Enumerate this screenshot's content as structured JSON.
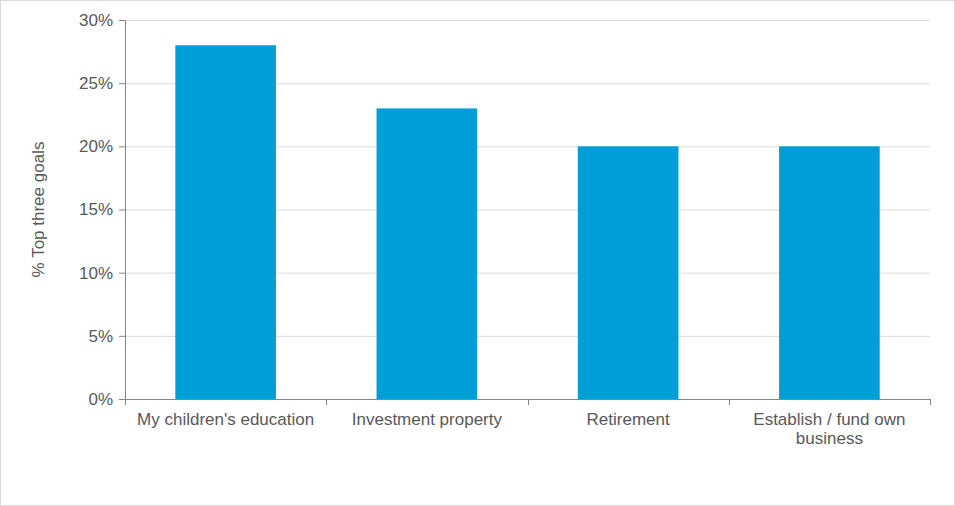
{
  "chart_data": {
    "type": "bar",
    "y_label": "% Top three goals",
    "categories": [
      "My children's education",
      "Investment property",
      "Retirement",
      "Establish / fund own business"
    ],
    "values": [
      28,
      23,
      20,
      20
    ],
    "color": "#009ED8",
    "ylim": [
      0,
      30
    ],
    "yticks": [
      {
        "value": 0,
        "label": "0%"
      },
      {
        "value": 5,
        "label": "5%"
      },
      {
        "value": 10,
        "label": "10%"
      },
      {
        "value": 15,
        "label": "15%"
      },
      {
        "value": 20,
        "label": "20%"
      },
      {
        "value": 25,
        "label": "25%"
      },
      {
        "value": 30,
        "label": "30%"
      }
    ],
    "grid": true
  }
}
